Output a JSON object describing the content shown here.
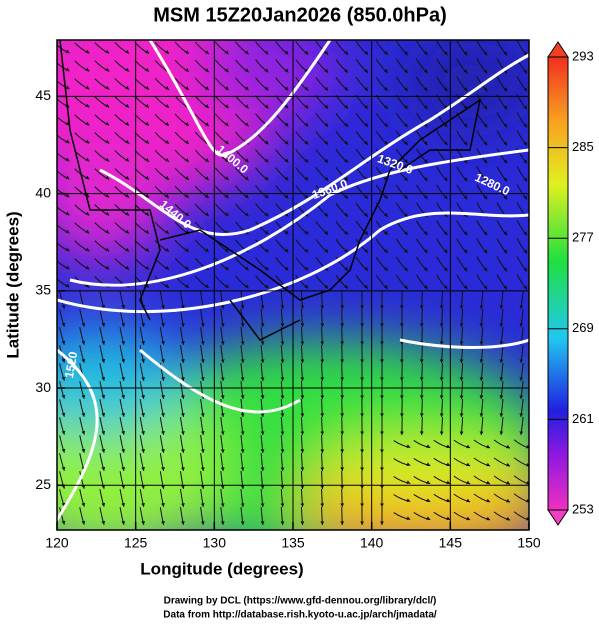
{
  "chart_data": {
    "type": "map",
    "title": "MSM 15Z20Jan2026 (850.0hPa)",
    "xlabel": "Longitude (degrees)",
    "ylabel": "Latitude  (degrees)",
    "xlim": [
      120,
      150
    ],
    "ylim": [
      22.7,
      47.9
    ],
    "xticks": [
      120,
      125,
      130,
      135,
      140,
      145,
      150
    ],
    "yticks": [
      25,
      30,
      35,
      40,
      45
    ],
    "grid": true,
    "colorbar": {
      "lim": [
        253,
        293
      ],
      "ticks": [
        253,
        261,
        269,
        277,
        285,
        293
      ]
    },
    "contour_labels": [
      "1400.0",
      "1440.0",
      "1360.0",
      "1320.0",
      "1280.0",
      "1520"
    ],
    "footer": [
      "Drawing by DCL (https://www.gfd-dennou.org/library/dcl/)",
      "Data from http://database.rish.kyoto-u.ac.jp/arch/jmadata/"
    ]
  }
}
